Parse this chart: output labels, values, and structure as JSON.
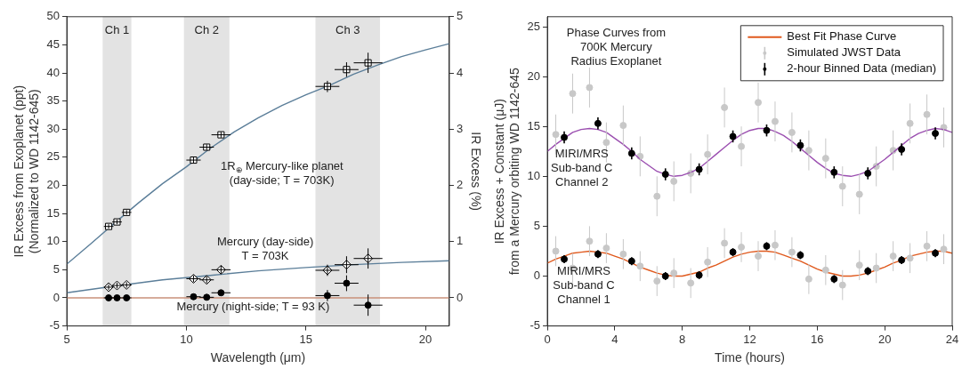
{
  "chart_data": [
    {
      "type": "scatter",
      "xlabel": "Wavelength (μm)",
      "ylabel": "IR Excess from Exoplanet (ppt)\n(Normalized to WD 1142-645)",
      "y2label": "IR Excess (%)",
      "xlim": [
        5,
        21
      ],
      "xticks": [
        5,
        10,
        15,
        20
      ],
      "ylim": [
        -5,
        50
      ],
      "yticks": [
        -5,
        0,
        5,
        10,
        15,
        20,
        25,
        30,
        35,
        40,
        45,
        50
      ],
      "y2lim": [
        -0.5,
        5
      ],
      "y2ticks": [
        0,
        1,
        2,
        3,
        4,
        5
      ],
      "bands": [
        {
          "axis": "x",
          "from": 6.5,
          "to": 7.7,
          "label": "Ch 1",
          "color": "#e3e3e3"
        },
        {
          "axis": "x",
          "from": 9.9,
          "to": 11.8,
          "label": "Ch 2",
          "color": "#e3e3e3"
        },
        {
          "axis": "x",
          "from": 15.4,
          "to": 18.1,
          "label": "Ch 3",
          "color": "#e3e3e3"
        }
      ],
      "series": [
        {
          "type": "line",
          "color": "#5b7e99",
          "marker": "none",
          "x": [
            5,
            6,
            7,
            8,
            9,
            10,
            11,
            12,
            13,
            14,
            15,
            16,
            17,
            18,
            19,
            20,
            21
          ],
          "values": [
            6.0,
            9.6,
            13.3,
            16.9,
            20.3,
            23.3,
            26.6,
            29.5,
            32.0,
            34.2,
            36.1,
            37.8,
            39.8,
            41.4,
            42.9,
            44.1,
            45.2
          ]
        },
        {
          "type": "line",
          "color": "#5b7e99",
          "marker": "none",
          "x": [
            5,
            7,
            9,
            11,
            13,
            15,
            17,
            19,
            21
          ],
          "values": [
            0.9,
            2.1,
            3.2,
            4.0,
            4.8,
            5.4,
            5.9,
            6.3,
            6.6
          ]
        },
        {
          "type": "line",
          "color": "#c8907a",
          "marker": "none",
          "x": [
            5,
            21
          ],
          "values": [
            0,
            0
          ]
        },
        {
          "type": "scatter",
          "color": "#000000",
          "marker": "square",
          "x": [
            6.75,
            7.1,
            7.5,
            10.3,
            10.85,
            11.45,
            15.9,
            16.7,
            17.6
          ],
          "values": [
            12.7,
            13.5,
            15.2,
            24.5,
            26.8,
            29.0,
            37.6,
            40.6,
            41.8
          ],
          "errors": [
            0.4,
            0.4,
            0.4,
            0.5,
            0.5,
            0.5,
            1.0,
            1.3,
            1.8
          ],
          "xerrors": [
            0.2,
            0.2,
            0.2,
            0.3,
            0.3,
            0.4,
            0.5,
            0.5,
            0.6
          ]
        },
        {
          "type": "scatter",
          "color": "#000000",
          "marker": "diamond",
          "x": [
            6.75,
            7.1,
            7.5,
            10.3,
            10.85,
            11.45,
            15.9,
            16.7,
            17.6
          ],
          "values": [
            1.9,
            2.2,
            2.3,
            3.4,
            3.2,
            5.0,
            4.9,
            5.9,
            7.0
          ],
          "errors": [
            0.5,
            0.5,
            0.5,
            0.6,
            0.6,
            0.7,
            1.0,
            1.5,
            1.8
          ],
          "xerrors": [
            0.2,
            0.2,
            0.2,
            0.3,
            0.3,
            0.4,
            0.5,
            0.5,
            0.6
          ]
        },
        {
          "type": "scatter",
          "color": "#000000",
          "marker": "circle",
          "x": [
            6.75,
            7.1,
            7.5,
            10.3,
            10.85,
            11.45,
            15.9,
            16.7,
            17.6
          ],
          "values": [
            0.0,
            0.0,
            0.0,
            0.2,
            0.1,
            0.9,
            0.4,
            2.6,
            -1.3
          ],
          "errors": [
            0.2,
            0.2,
            0.2,
            0.3,
            0.3,
            0.3,
            1.0,
            1.4,
            1.9
          ],
          "xerrors": [
            0.2,
            0.2,
            0.2,
            0.3,
            0.3,
            0.4,
            0.5,
            0.5,
            0.6
          ]
        }
      ],
      "annotations": [
        "1R$_{⊕}$ Mercury-like planet\n(day-side; T = 703K)",
        "Mercury (day-side)\nT = 703K",
        "Mercury (night-side; T = 93 K)"
      ]
    },
    {
      "type": "scatter",
      "xlabel": "Time (hours)",
      "ylabel": "IR Excess + Constant (μJ)\nfrom a Mercury orbiting WD 1142-645",
      "xlim": [
        0,
        24
      ],
      "xticks": [
        0,
        4,
        8,
        12,
        16,
        20,
        24
      ],
      "ylim": [
        -5,
        26
      ],
      "yticks": [
        -5,
        0,
        5,
        10,
        15,
        20,
        25
      ],
      "legend": "top right",
      "series": [
        {
          "name": "Best Fit Phase Curve",
          "type": "line",
          "color": "#e05a1e",
          "marker": "none",
          "x": [
            0,
            0.5,
            1,
            1.5,
            2,
            2.5,
            3,
            3.5,
            4,
            4.5,
            5,
            5.5,
            6,
            6.5,
            7,
            7.5,
            8,
            8.5,
            9,
            9.5,
            10,
            10.5,
            11,
            11.5,
            12,
            12.5,
            13,
            13.5,
            14,
            14.5,
            15,
            15.5,
            16,
            16.5,
            17,
            17.5,
            18,
            18.5,
            19,
            19.5,
            20,
            20.5,
            21,
            21.5,
            22,
            22.5,
            23,
            23.5,
            24
          ],
          "values": [
            1.3,
            1.7,
            2.0,
            2.3,
            2.4,
            2.5,
            2.4,
            2.3,
            2.0,
            1.7,
            1.3,
            0.9,
            0.6,
            0.3,
            0.1,
            0.0,
            0.0,
            0.2,
            0.4,
            0.8,
            1.1,
            1.5,
            1.9,
            2.2,
            2.4,
            2.5,
            2.5,
            2.4,
            2.1,
            1.8,
            1.5,
            1.1,
            0.7,
            0.4,
            0.2,
            0.0,
            0.0,
            0.1,
            0.3,
            0.6,
            0.9,
            1.3,
            1.6,
            2.0,
            2.2,
            2.4,
            2.5,
            2.5,
            2.3
          ]
        },
        {
          "name": "Simulated JWST Data",
          "type": "scatter",
          "color": "#c8c8c8",
          "marker": "circle",
          "x": [
            0.5,
            1.5,
            2.5,
            3.5,
            4.5,
            5.5,
            6.5,
            7.5,
            8.5,
            9.5,
            10.5,
            11.5,
            12.5,
            13.5,
            14.5,
            15.5,
            16.5,
            17.5,
            18.5,
            19.5,
            20.5,
            21.5,
            22.5,
            23.5,
            0.5,
            1.5,
            2.5,
            3.5,
            4.5,
            5.5,
            6.5,
            7.5,
            8.5,
            9.5,
            10.5,
            11.5,
            12.5,
            13.5,
            14.5,
            15.5,
            16.5,
            17.5,
            18.5,
            19.5,
            20.5,
            21.5,
            22.5,
            23.5
          ],
          "values": [
            14.2,
            18.3,
            18.9,
            13.4,
            15.1,
            12.0,
            8.0,
            9.5,
            10.3,
            12.2,
            16.9,
            13.0,
            17.4,
            15.5,
            14.4,
            12.6,
            11.8,
            9.0,
            8.2,
            11.0,
            12.6,
            15.3,
            16.2,
            14.9,
            2.5,
            0.8,
            3.5,
            2.8,
            2.2,
            1.0,
            -0.5,
            0.3,
            -0.7,
            1.4,
            3.3,
            2.9,
            2.0,
            3.1,
            2.4,
            -0.3,
            0.6,
            -0.9,
            1.1,
            0.8,
            2.0,
            1.8,
            3.0,
            2.7
          ],
          "errors": [
            2,
            2,
            2,
            2,
            2,
            2,
            2,
            2,
            2,
            2,
            2,
            2,
            2,
            2,
            2,
            2,
            2,
            2,
            2,
            2,
            2,
            2,
            2,
            2,
            1.5,
            1.5,
            1.5,
            1.5,
            1.5,
            1.5,
            1.5,
            1.5,
            1.5,
            1.5,
            1.5,
            1.5,
            1.5,
            1.5,
            1.5,
            1.5,
            1.5,
            1.5,
            1.5,
            1.5,
            1.5,
            1.5,
            1.5,
            1.5
          ]
        },
        {
          "type": "line",
          "color": "#9b4fb0",
          "marker": "none",
          "x": [
            0,
            0.5,
            1,
            1.5,
            2,
            2.5,
            3,
            3.5,
            4,
            4.5,
            5,
            5.5,
            6,
            6.5,
            7,
            7.5,
            8,
            8.5,
            9,
            9.5,
            10,
            10.5,
            11,
            11.5,
            12,
            12.5,
            13,
            13.5,
            14,
            14.5,
            15,
            15.5,
            16,
            16.5,
            17,
            17.5,
            18,
            18.5,
            19,
            19.5,
            20,
            20.5,
            21,
            21.5,
            22,
            22.5,
            23,
            23.5,
            24
          ],
          "values": [
            12.5,
            13.2,
            13.8,
            14.4,
            14.7,
            14.8,
            14.7,
            14.4,
            13.8,
            13.2,
            12.5,
            11.7,
            11.1,
            10.5,
            10.2,
            10.0,
            10.1,
            10.4,
            10.8,
            11.5,
            12.2,
            12.9,
            13.6,
            14.2,
            14.6,
            14.8,
            14.8,
            14.5,
            14.1,
            13.5,
            12.8,
            12.1,
            11.4,
            10.8,
            10.3,
            10.1,
            10.0,
            10.2,
            10.5,
            11.1,
            11.7,
            12.4,
            13.1,
            13.8,
            14.3,
            14.6,
            14.8,
            14.7,
            14.4
          ]
        },
        {
          "name": "2-hour Binned Data (median)",
          "type": "scatter",
          "color": "#000000",
          "marker": "circle",
          "x": [
            1,
            3,
            5,
            7,
            9,
            11,
            13,
            15,
            17,
            19,
            21,
            23,
            1,
            3,
            5,
            7,
            9,
            11,
            13,
            15,
            17,
            19,
            21,
            23
          ],
          "values": [
            13.9,
            15.3,
            12.3,
            10.2,
            10.7,
            14.0,
            14.6,
            13.1,
            10.4,
            10.3,
            12.7,
            14.3,
            1.7,
            2.2,
            1.5,
            0.0,
            0.1,
            2.4,
            3.0,
            2.1,
            -0.3,
            0.5,
            1.6,
            2.3
          ],
          "errors": [
            0.6,
            0.6,
            0.6,
            0.6,
            0.6,
            0.6,
            0.6,
            0.6,
            0.6,
            0.6,
            0.6,
            0.6,
            0.4,
            0.4,
            0.4,
            0.4,
            0.4,
            0.4,
            0.4,
            0.4,
            0.4,
            0.4,
            0.4,
            0.4
          ]
        }
      ],
      "annotations": [
        "Phase Curves from\n700K Mercury\nRadius Exoplanet",
        "MIRI/MRS\nSub-band C\nChannel 2",
        "MIRI/MRS\nSub-band C\nChannel 1"
      ]
    }
  ]
}
